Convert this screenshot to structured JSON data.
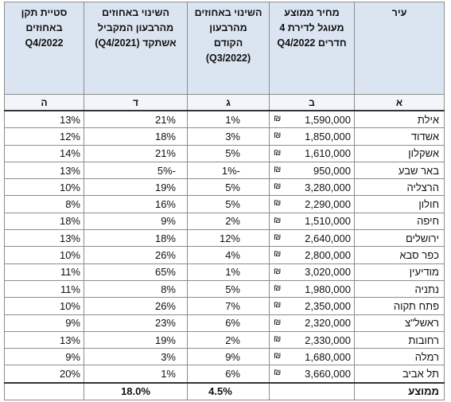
{
  "table": {
    "headers": [
      [
        "עיר"
      ],
      [
        "מחיר ממוצע",
        "מעוגל לדירת 4",
        "חדרים Q4/2022"
      ],
      [
        "השינוי באחוזים",
        "מהרבעון",
        "הקודם",
        "(Q3/2022)"
      ],
      [
        "השינוי באחוזים",
        "מהרבעון המקביל",
        "אשתקד (Q4/2021)"
      ],
      [
        "סטיית תקן",
        "באחוזים",
        "Q4/2022"
      ]
    ],
    "letters": [
      "א",
      "ב",
      "ג",
      "ד",
      "ה"
    ],
    "currency": "₪",
    "rows": [
      [
        "אילת",
        "1,590,000",
        "1%",
        "21%",
        "13%"
      ],
      [
        "אשדוד",
        "1,850,000",
        "3%",
        "18%",
        "12%"
      ],
      [
        "אשקלון",
        "1,610,000",
        "5%",
        "21%",
        "14%"
      ],
      [
        "באר שבע",
        "950,000",
        "-1%",
        "-5%",
        "13%"
      ],
      [
        "הרצליה",
        "3,280,000",
        "5%",
        "19%",
        "10%"
      ],
      [
        "חולון",
        "2,290,000",
        "5%",
        "16%",
        "8%"
      ],
      [
        "חיפה",
        "1,510,000",
        "2%",
        "9%",
        "18%"
      ],
      [
        "ירושלים",
        "2,640,000",
        "12%",
        "18%",
        "13%"
      ],
      [
        "כפר סבא",
        "2,800,000",
        "4%",
        "26%",
        "10%"
      ],
      [
        "מודיעין",
        "3,020,000",
        "1%",
        "65%",
        "11%"
      ],
      [
        "נתניה",
        "1,980,000",
        "5%",
        "8%",
        "11%"
      ],
      [
        "פתח תקוה",
        "2,350,000",
        "7%",
        "26%",
        "10%"
      ],
      [
        "ראשל\"צ",
        "2,320,000",
        "6%",
        "23%",
        "9%"
      ],
      [
        "רחובות",
        "2,330,000",
        "2%",
        "19%",
        "13%"
      ],
      [
        "רמלה",
        "1,680,000",
        "9%",
        "3%",
        "9%"
      ],
      [
        "תל אביב",
        "3,660,000",
        "6%",
        "1%",
        "20%"
      ]
    ],
    "average": {
      "label": "ממוצע",
      "change_q3": "4.5%",
      "change_q4": "18.0%"
    }
  }
}
